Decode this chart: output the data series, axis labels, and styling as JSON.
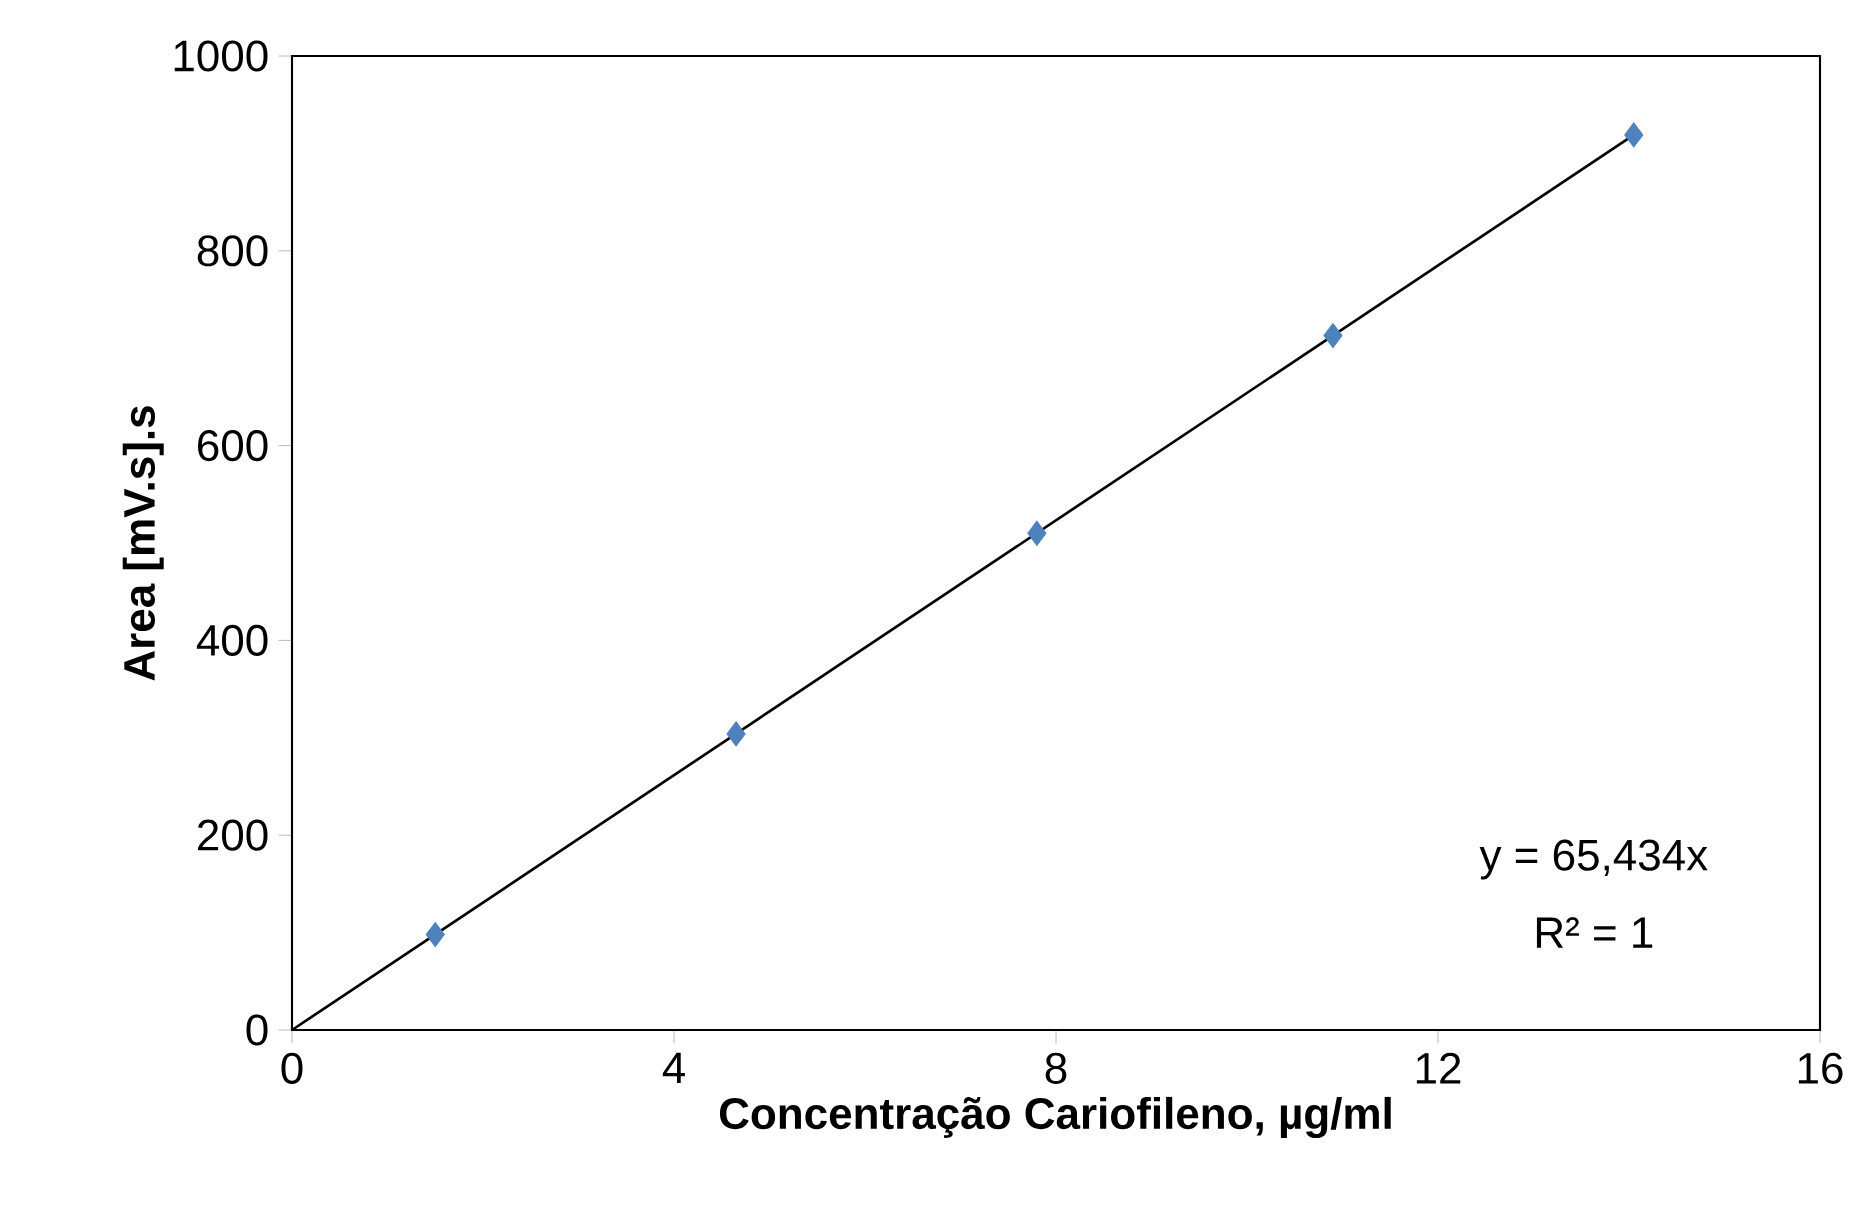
{
  "chart_data": {
    "type": "scatter",
    "xlabel": "Concentração Cariofileno, µg/ml",
    "ylabel": "Area [mV.s].s",
    "series": [
      {
        "color": "#4f81bd",
        "marker": "diamond",
        "x": [
          1.5,
          4.65,
          7.8,
          10.9,
          14.05
        ],
        "values": [
          98,
          304,
          510,
          713,
          919
        ]
      },
      {
        "type": "line",
        "color": "#000000",
        "line_style": "solid",
        "x": [
          0,
          14.05
        ],
        "values": [
          0,
          919
        ]
      }
    ],
    "annotations": [
      "y = 65,434x",
      "R² = 1"
    ],
    "xlim": [
      0,
      16
    ],
    "xticks": [
      0,
      4,
      8,
      12,
      16
    ],
    "ylim": [
      0,
      1000
    ],
    "yticks": [
      0,
      200,
      400,
      600,
      800,
      1000
    ]
  }
}
